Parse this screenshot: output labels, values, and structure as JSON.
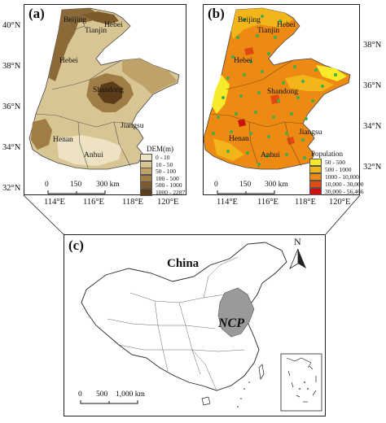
{
  "panel_a": {
    "label": "(a)",
    "lat_ticks": [
      "40°N",
      "38°N",
      "36°N",
      "34°N",
      "32°N"
    ],
    "lon_ticks": [
      "114°E",
      "116°E",
      "118°E",
      "120°E"
    ],
    "provinces": [
      "Beijing",
      "Tianjin",
      "Hebei",
      "Hebei",
      "Shandong",
      "Henan",
      "Jiangsu",
      "Anhui"
    ],
    "scale": {
      "zero": "0",
      "mid": "150",
      "end": "300 km"
    },
    "legend": {
      "title": "DEM(m)",
      "items": [
        {
          "label": "0 - 10",
          "color": "#ede2c2"
        },
        {
          "label": "10 - 50",
          "color": "#d8c594"
        },
        {
          "label": "50 - 100",
          "color": "#bfa26a"
        },
        {
          "label": "100 - 500",
          "color": "#a07c46"
        },
        {
          "label": "500 - 1000",
          "color": "#7d5a2c"
        },
        {
          "label": "1000 - 2287",
          "color": "#5a3c18"
        }
      ]
    }
  },
  "panel_b": {
    "label": "(b)",
    "lat_ticks": [
      "38°N",
      "36°N",
      "34°N",
      "32°N"
    ],
    "lon_ticks": [
      "114°E",
      "116°E",
      "118°E",
      "120°E"
    ],
    "provinces": [
      "Beijing",
      "Tianjin",
      "Hebei",
      "Hebei",
      "Shandong",
      "Henan",
      "Jiangsu",
      "Anhui"
    ],
    "scale": {
      "zero": "0",
      "mid": "150",
      "end": "300 km"
    },
    "legend": {
      "title": "Population",
      "items": [
        {
          "label": "50 - 500",
          "color": "#f7ea2a"
        },
        {
          "label": "500 - 1000",
          "color": "#f2b51a"
        },
        {
          "label": "1000 - 10,000",
          "color": "#ec8a14"
        },
        {
          "label": "10,000 - 30,000",
          "color": "#e04a10"
        },
        {
          "label": "30,000 - 56,466",
          "color": "#cc1010"
        }
      ]
    }
  },
  "panel_c": {
    "label": "(c)",
    "country": "China",
    "region": "NCP",
    "north": "N",
    "scale": {
      "zero": "0",
      "mid": "500",
      "end": "1,000 km"
    }
  }
}
